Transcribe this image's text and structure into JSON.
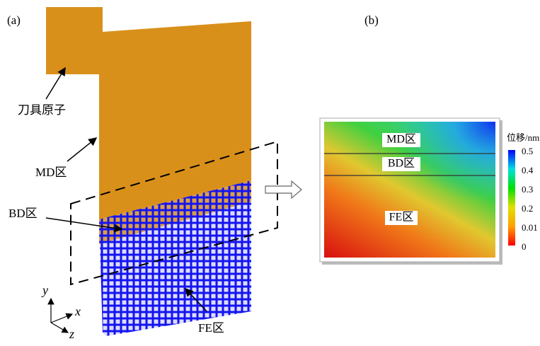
{
  "panel_a": {
    "label": "(a)",
    "annotations": {
      "tool": "刀具原子",
      "md": "MD区",
      "bd": "BD区",
      "fe": "FE区"
    },
    "axes": {
      "y": "y",
      "x": "x",
      "z": "z"
    }
  },
  "panel_b": {
    "label": "(b)",
    "regions": [
      "MD区",
      "BD区",
      "FE区"
    ],
    "colorbar": {
      "title": "位移/nm",
      "ticks": [
        "0.5",
        "0.4",
        "0.3",
        "0.2",
        "0.01",
        "0"
      ]
    }
  }
}
